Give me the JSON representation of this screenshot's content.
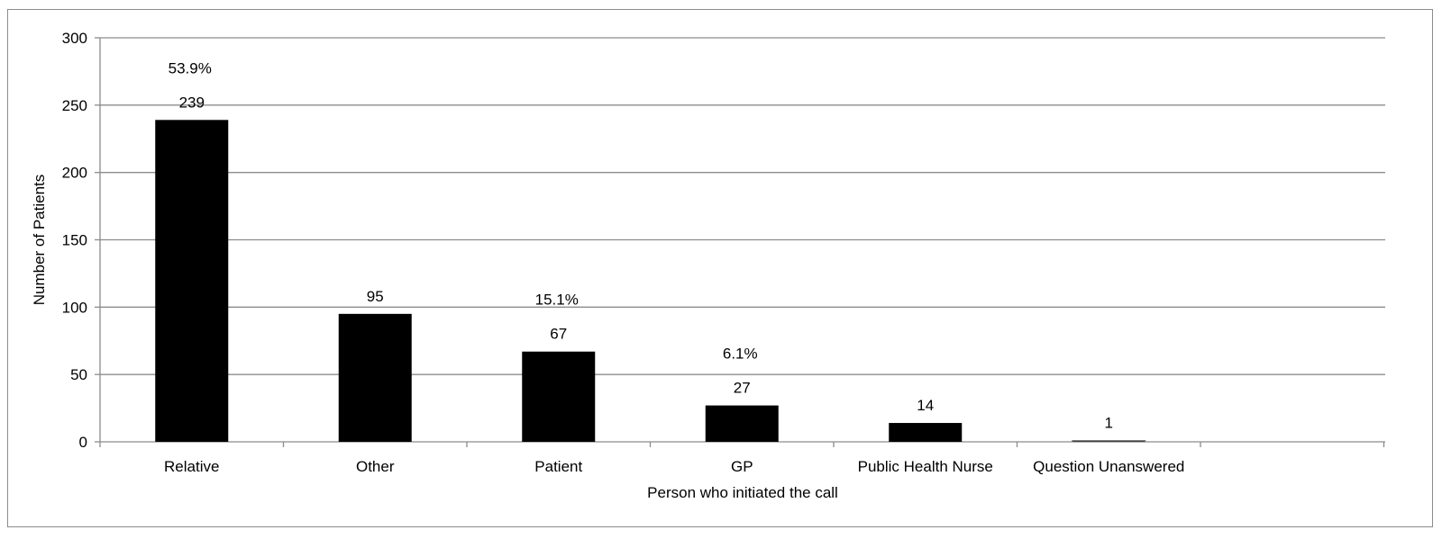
{
  "chart_data": {
    "type": "bar",
    "categories": [
      "Relative",
      "Other",
      "Patient",
      "GP",
      "Public Health Nurse",
      "Question Unanswered"
    ],
    "values": [
      239,
      95,
      67,
      27,
      14,
      1
    ],
    "data_labels": [
      "239",
      "95",
      "67",
      "27",
      "14",
      "1"
    ],
    "percent_labels": [
      "53.9%",
      "",
      "15.1%",
      "6.1%",
      "",
      ""
    ],
    "title": "",
    "xlabel": "Person who initiated the call",
    "ylabel": "Number of Patients",
    "ylim": [
      0,
      300
    ],
    "yticks": [
      0,
      50,
      100,
      150,
      200,
      250,
      300
    ],
    "grid": true,
    "bar_color": "#000000",
    "grid_color": "#8c8c8c"
  }
}
